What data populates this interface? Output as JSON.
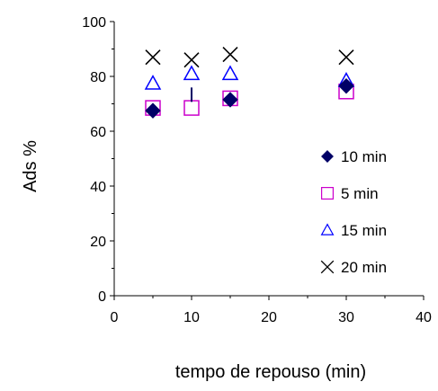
{
  "chart_data": {
    "type": "scatter",
    "title": "",
    "xlabel": "tempo de repouso (min)",
    "ylabel": "Ads %",
    "xlim": [
      0,
      40
    ],
    "ylim": [
      0,
      100
    ],
    "xticks": [
      0,
      10,
      20,
      30,
      40
    ],
    "yticks": [
      0,
      20,
      40,
      60,
      80,
      100
    ],
    "grid": false,
    "legend_position": "right",
    "series": [
      {
        "name": "10 min",
        "marker": "diamond-filled",
        "color": "#000066",
        "x": [
          5,
          10,
          15,
          30
        ],
        "y": [
          67.5,
          73,
          71.5,
          76.5
        ]
      },
      {
        "name": "5 min",
        "marker": "square-open",
        "color": "#cc00cc",
        "x": [
          5,
          10,
          15,
          30
        ],
        "y": [
          68.5,
          68.5,
          72,
          74.5
        ]
      },
      {
        "name": "15 min",
        "marker": "triangle-open",
        "color": "#0000ff",
        "x": [
          5,
          10,
          15,
          30
        ],
        "y": [
          77.5,
          81,
          81,
          78.5
        ]
      },
      {
        "name": "20 min",
        "marker": "x",
        "color": "#000000",
        "x": [
          5,
          10,
          15,
          30
        ],
        "y": [
          87,
          86,
          88,
          87
        ]
      }
    ]
  }
}
